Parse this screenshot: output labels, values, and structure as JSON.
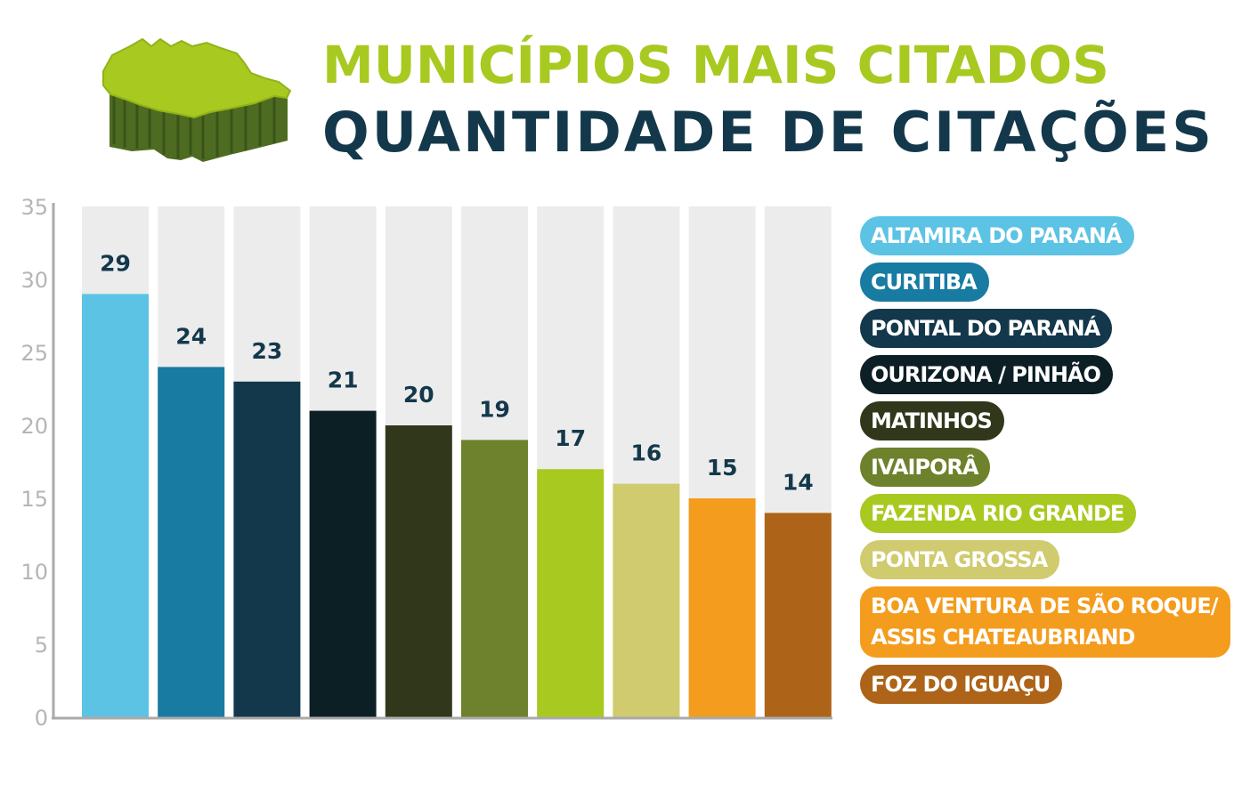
{
  "header": {
    "title_line1": "MUNICÍPIOS MAIS CITADOS",
    "title_line2": "QUANTIDADE DE CITAÇÕES",
    "icon": "parana-state-map-icon"
  },
  "colors": {
    "title_green": "#a8c920",
    "title_navy": "#14384b",
    "track": "#ececec",
    "axis": "#aaaaaa",
    "tick_label": "#b5b5b5",
    "value_label": "#14384b"
  },
  "chart_data": {
    "type": "bar",
    "categories": [
      "ALTAMIRA DO PARANÁ",
      "CURITIBA",
      "PONTAL DO PARANÁ",
      "OURIZONA / PINHÃO",
      "MATINHOS",
      "IVAIPORÂ",
      "FAZENDA RIO GRANDE",
      "PONTA GROSSA",
      "BOA VENTURA DE SÃO ROQUE/\nASSIS CHATEAUBRIAND",
      "FOZ DO IGUAÇU"
    ],
    "values": [
      29,
      24,
      23,
      21,
      20,
      19,
      17,
      16,
      15,
      14
    ],
    "value_labels": [
      "29",
      "24",
      "23",
      "21",
      "20",
      "19",
      "17",
      "16",
      "15",
      "14"
    ],
    "colors": [
      "#5cc3e5",
      "#187ba2",
      "#14384b",
      "#0c1f25",
      "#31371b",
      "#6e812c",
      "#a8c920",
      "#cfcb6e",
      "#f49c1d",
      "#ad6418"
    ],
    "ylim": [
      0,
      35
    ],
    "yticks": [
      "0",
      "5",
      "10",
      "15",
      "20",
      "25",
      "30",
      "35"
    ],
    "title": "MUNICÍPIOS MAIS CITADOS",
    "subtitle": "QUANTIDADE DE CITAÇÕES",
    "legend_position": "right",
    "grid": false
  }
}
